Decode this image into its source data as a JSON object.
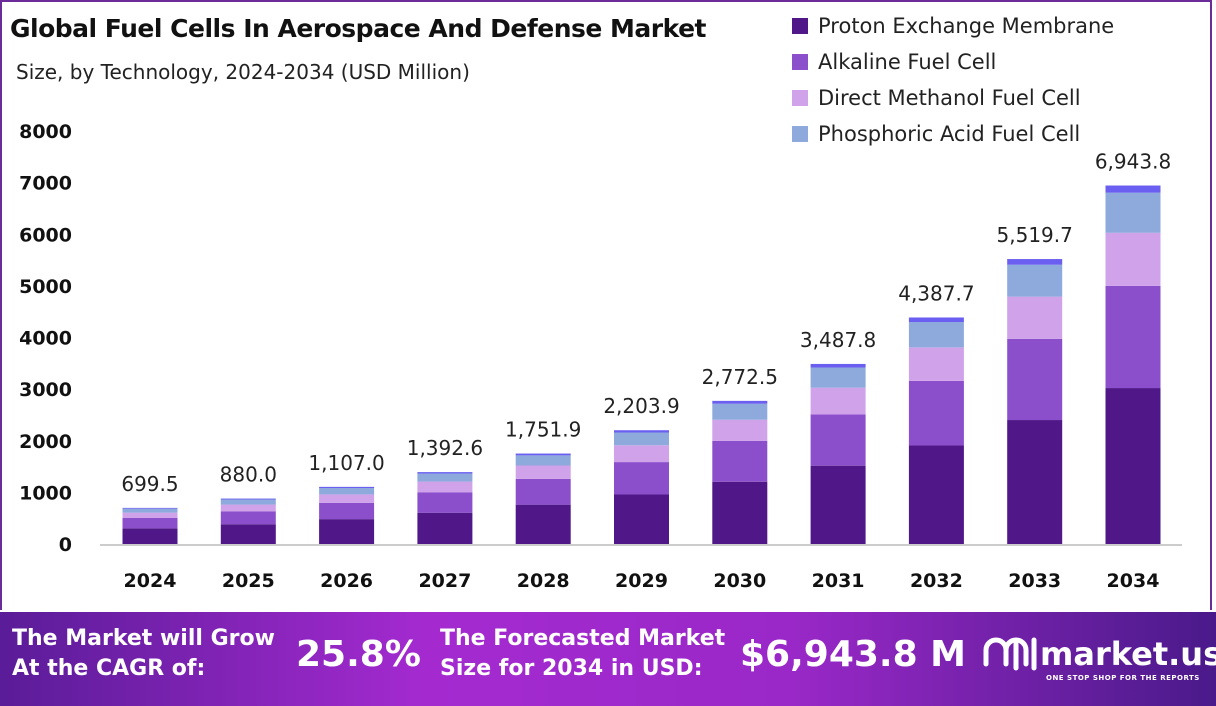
{
  "chart_data": {
    "type": "bar",
    "stacked": true,
    "title": "Global Fuel Cells In Aerospace And Defense Market",
    "subtitle": "Size, by Technology, 2024-2034 (USD Million)",
    "categories": [
      "2024",
      "2025",
      "2026",
      "2027",
      "2028",
      "2029",
      "2030",
      "2031",
      "2032",
      "2033",
      "2034"
    ],
    "totals": [
      "699.5",
      "880.0",
      "1,107.0",
      "1,392.6",
      "1,751.9",
      "2,203.9",
      "2,772.5",
      "3,487.8",
      "4,387.7",
      "5,519.7",
      "6,943.8"
    ],
    "series": [
      {
        "name": "Proton Exchange Membrane",
        "color": "#4f1787",
        "values": [
          304.3,
          382.8,
          481.5,
          605.8,
          762.1,
          958.7,
          1206.0,
          1517.2,
          1908.6,
          2401.1,
          3020.6
        ]
      },
      {
        "name": "Alkaline Fuel Cell",
        "color": "#8b4fcc",
        "values": [
          199.4,
          250.8,
          315.5,
          396.9,
          499.3,
          628.1,
          790.2,
          994.0,
          1250.5,
          1573.1,
          1979.0
        ]
      },
      {
        "name": "Direct Methanol Fuel Cell",
        "color": "#cfa2ea",
        "values": [
          103.5,
          130.2,
          163.8,
          206.1,
          259.3,
          326.2,
          410.3,
          516.2,
          649.4,
          816.9,
          1027.7
        ]
      },
      {
        "name": "Phosphoric Acid Fuel Cell",
        "color": "#8eaadc",
        "values": [
          78.3,
          98.6,
          124.0,
          156.0,
          196.2,
          246.8,
          310.5,
          390.6,
          491.4,
          618.2,
          777.7
        ]
      },
      {
        "color": "#6a5ff0",
        "values": [
          14.0,
          17.6,
          22.1,
          27.9,
          35.0,
          44.1,
          55.5,
          69.8,
          87.8,
          110.4,
          138.9
        ]
      }
    ],
    "yticks": [
      "0",
      "1000",
      "2000",
      "3000",
      "4000",
      "5000",
      "6000",
      "7000",
      "8000"
    ],
    "ylim": [
      0,
      8000
    ],
    "grid": false,
    "legend": "top-right"
  },
  "footer": {
    "cagr_label_1": "The Market will Grow",
    "cagr_label_2": "At the CAGR of:",
    "cagr_value": "25.8%",
    "forecast_label_1": "The Forecasted Market",
    "forecast_label_2": "Size for 2034 in USD:",
    "forecast_value": "$6,943.8 M",
    "logo_text": "market.us",
    "logo_tagline": "ONE STOP SHOP FOR THE REPORTS"
  }
}
